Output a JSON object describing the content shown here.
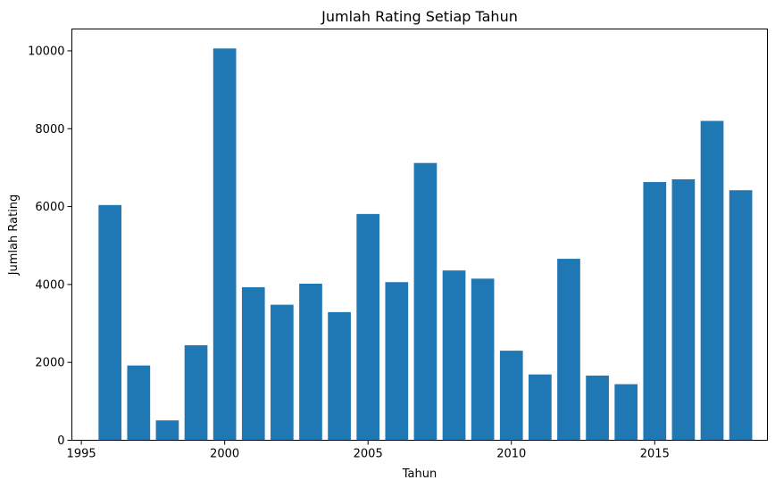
{
  "chart_data": {
    "type": "bar",
    "title": "Jumlah Rating Setiap Tahun",
    "xlabel": "Tahun",
    "ylabel": "Jumlah Rating",
    "x": [
      1996,
      1997,
      1998,
      1999,
      2000,
      2001,
      2002,
      2003,
      2004,
      2005,
      2006,
      2007,
      2008,
      2009,
      2010,
      2011,
      2012,
      2013,
      2014,
      2015,
      2016,
      2017,
      2018
    ],
    "values": [
      6040,
      1920,
      510,
      2440,
      10060,
      3930,
      3480,
      4020,
      3290,
      5810,
      4060,
      7120,
      4360,
      4150,
      2300,
      1690,
      4660,
      1660,
      1440,
      6630,
      6700,
      8200,
      6420
    ],
    "xlim": [
      1994.67,
      2018.93
    ],
    "ylim": [
      0,
      10560
    ],
    "xticks": [
      "1995",
      "2000",
      "2005",
      "2010",
      "2015"
    ],
    "yticks": [
      "0",
      "2000",
      "4000",
      "6000",
      "8000",
      "10000"
    ],
    "bar_color": "#1f77b4",
    "grid": false,
    "legend": "none"
  }
}
